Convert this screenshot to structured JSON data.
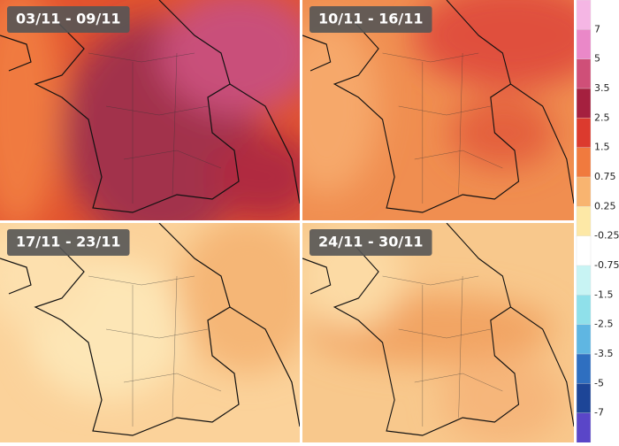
{
  "panels": [
    {
      "label": "03/11 - 09/11"
    },
    {
      "label": "10/11 - 16/11"
    },
    {
      "label": "17/11 - 23/11"
    },
    {
      "label": "24/11 - 30/11"
    }
  ],
  "legend": {
    "labels": [
      "7",
      "5",
      "3.5",
      "2.5",
      "1.5",
      "0.75",
      "0.25",
      "-0.25",
      "-0.75",
      "-1.5",
      "-2.5",
      "-3.5",
      "-5",
      "-7"
    ],
    "colors": [
      "#f5b6e4",
      "#ea88c8",
      "#cf4f78",
      "#a5203f",
      "#dc3a2e",
      "#f07a3e",
      "#f8b470",
      "#fde8a6",
      "#ffffff",
      "#c8f4f4",
      "#8fe0ea",
      "#5fb6e2",
      "#2f6fc0",
      "#1d4597",
      "#5a46c8"
    ]
  }
}
